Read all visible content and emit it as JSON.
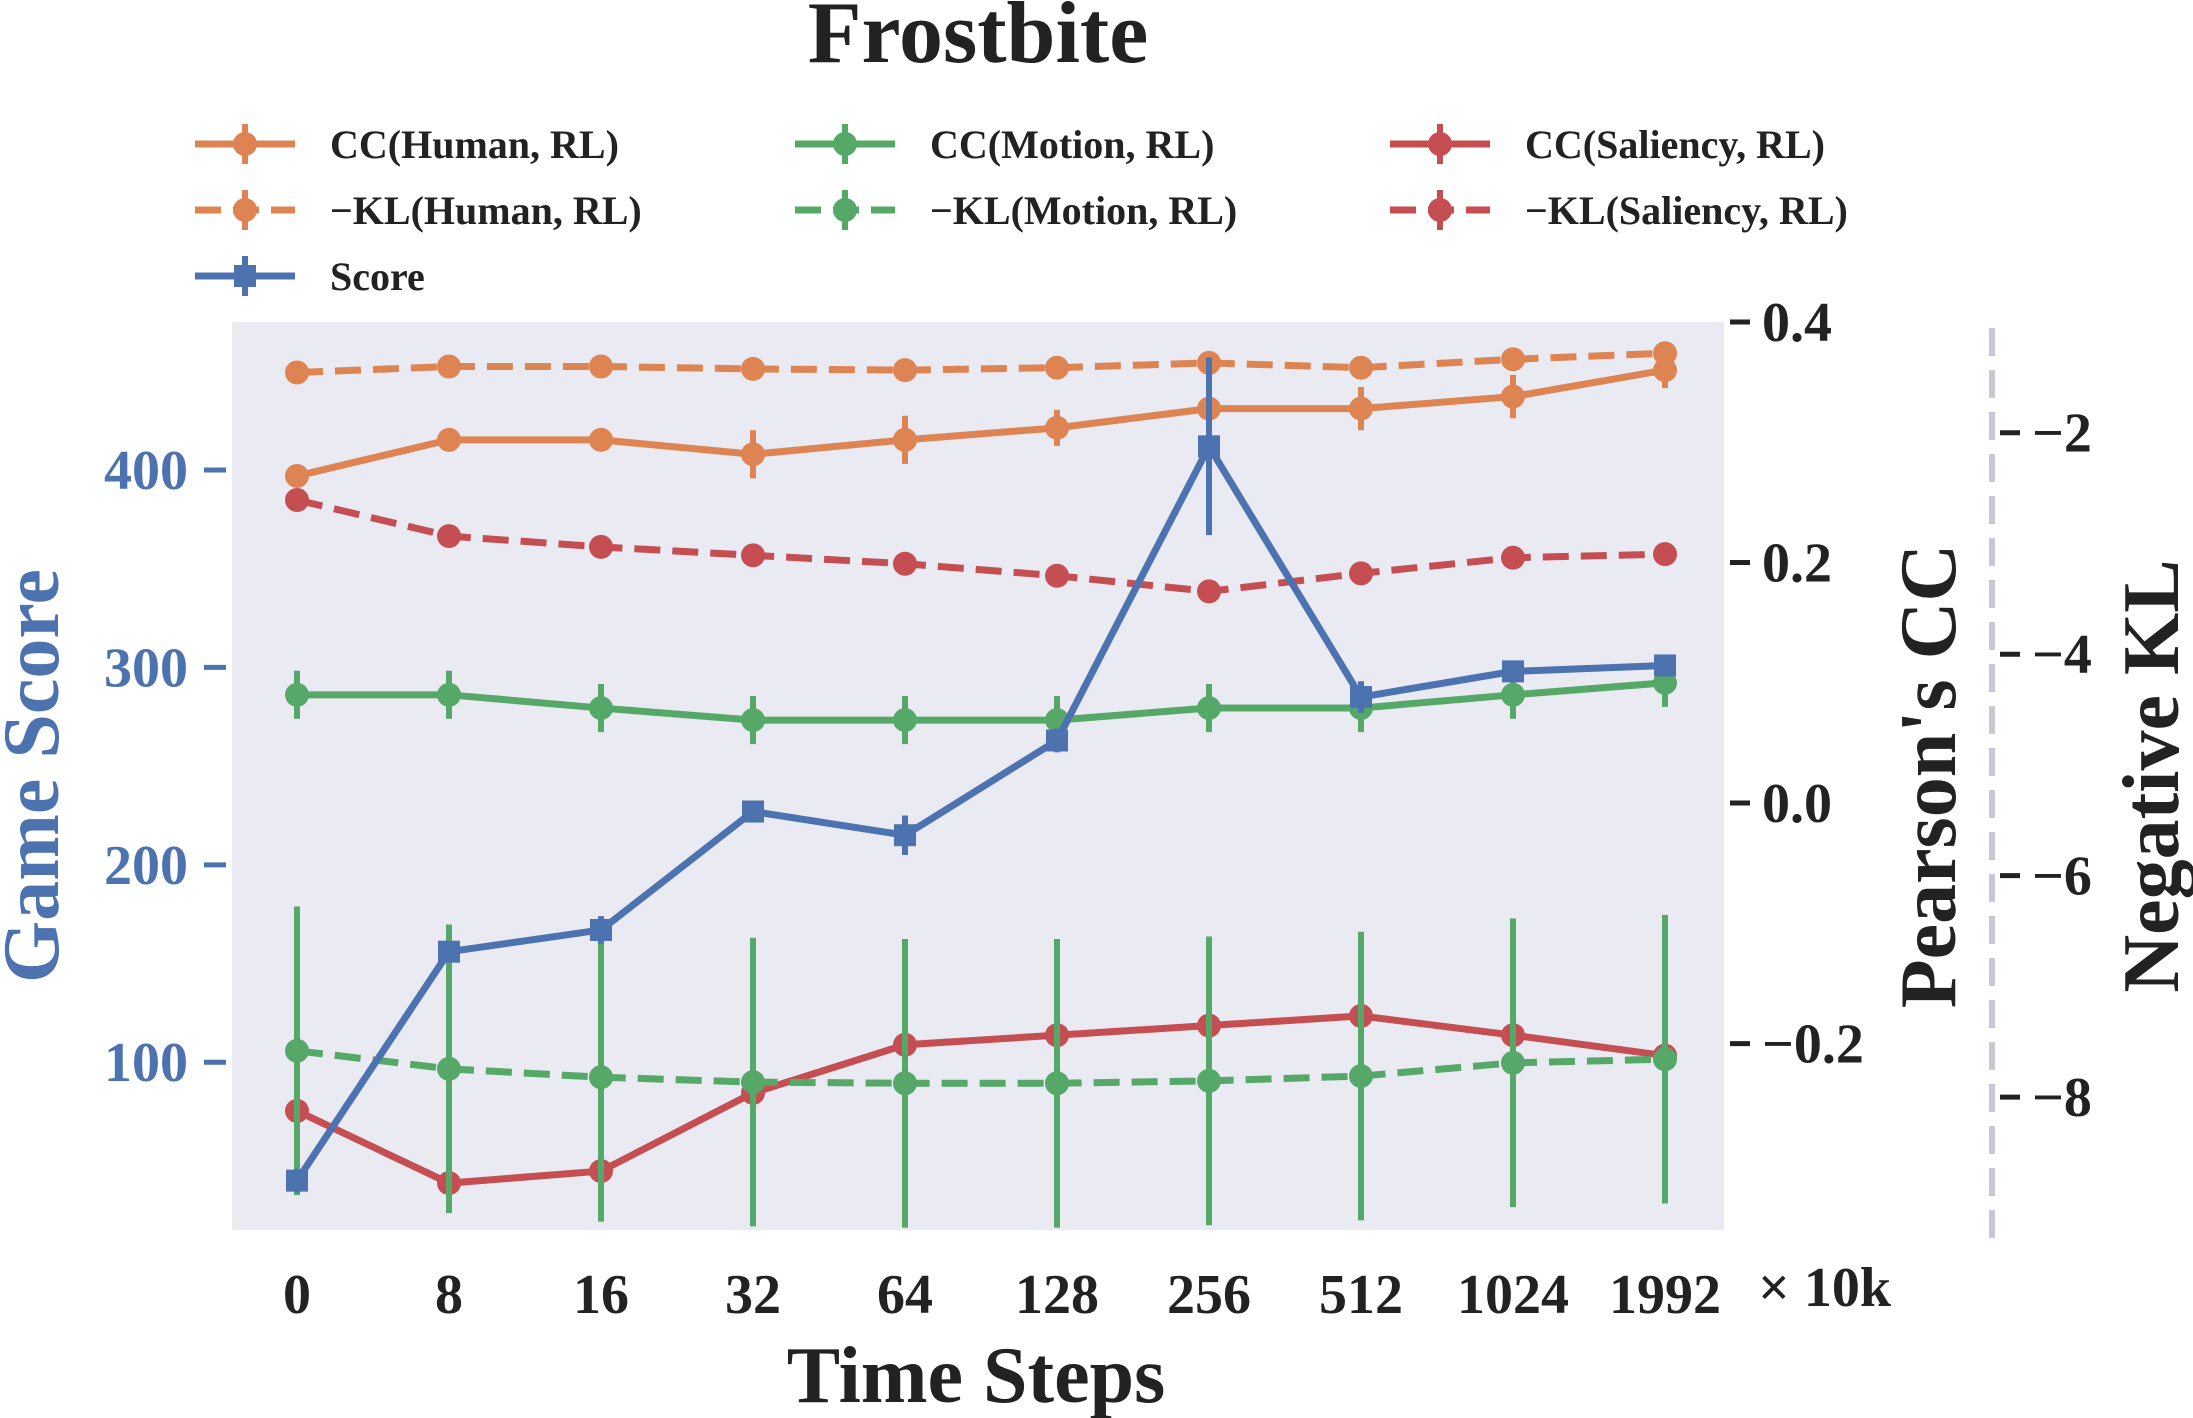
{
  "chart_data": {
    "type": "line",
    "title": "Frostbite",
    "xlabel": "Time Steps",
    "x_offset_label": "× 10k",
    "categories": [
      "0",
      "8",
      "16",
      "32",
      "64",
      "128",
      "256",
      "512",
      "1024",
      "1992"
    ],
    "axes": {
      "left": {
        "label": "Game Score",
        "ylim": [
          15,
          475
        ],
        "ticks": [
          100,
          200,
          300,
          400
        ],
        "tick_labels": [
          "100",
          "200",
          "300",
          "400"
        ],
        "color": "#4c72b0"
      },
      "right": {
        "label": "Pearson's CC",
        "ylim": [
          -0.355,
          0.4
        ],
        "ticks": [
          -0.2,
          0.0,
          0.2,
          0.4
        ],
        "tick_labels": [
          "−0.2",
          "0.0",
          "0.2",
          "0.4"
        ]
      },
      "far_right": {
        "label": "Negative KL",
        "ylim": [
          -9.2,
          -1.0
        ],
        "ticks": [
          -2,
          -4,
          -6,
          -8
        ],
        "tick_labels": [
          "−2",
          "−4",
          "−6",
          "−8"
        ]
      }
    },
    "series": [
      {
        "name": "CC(Human, RL)",
        "axis": "right",
        "color": "#dd8452",
        "style": "solid",
        "marker": "circle",
        "values": [
          0.272,
          0.302,
          0.302,
          0.29,
          0.302,
          0.312,
          0.328,
          0.328,
          0.338,
          0.36
        ],
        "errors": [
          0.0,
          0.0,
          0.0,
          0.02,
          0.02,
          0.015,
          0.015,
          0.018,
          0.018,
          0.015
        ]
      },
      {
        "name": "−KL(Human, RL)",
        "axis": "right",
        "color": "#dd8452",
        "style": "dashed",
        "marker": "circle",
        "values": [
          0.358,
          0.363,
          0.363,
          0.361,
          0.36,
          0.362,
          0.366,
          0.362,
          0.369,
          0.374
        ],
        "errors": [
          0.0,
          0.0,
          0.0,
          0.0,
          0.0,
          0.0,
          0.0,
          0.0,
          0.0,
          0.0
        ]
      },
      {
        "name": "CC(Motion, RL)",
        "axis": "right",
        "color": "#55a868",
        "style": "solid",
        "marker": "circle",
        "values": [
          0.09,
          0.09,
          0.079,
          0.069,
          0.069,
          0.069,
          0.079,
          0.079,
          0.09,
          0.1
        ],
        "errors": [
          0.02,
          0.02,
          0.02,
          0.02,
          0.02,
          0.02,
          0.02,
          0.02,
          0.02,
          0.02
        ]
      },
      {
        "name": "−KL(Motion, RL)",
        "axis": "right",
        "color": "#55a868",
        "style": "dashed",
        "marker": "circle",
        "values": [
          -0.206,
          -0.221,
          -0.228,
          -0.232,
          -0.233,
          -0.233,
          -0.231,
          -0.227,
          -0.216,
          -0.213
        ],
        "errors": [
          0.12,
          0.12,
          0.12,
          0.12,
          0.12,
          0.12,
          0.12,
          0.12,
          0.12,
          0.12
        ]
      },
      {
        "name": "CC(Saliency, RL)",
        "axis": "right",
        "color": "#c44e52",
        "style": "solid",
        "marker": "circle",
        "values": [
          -0.256,
          -0.316,
          -0.306,
          -0.241,
          -0.201,
          -0.193,
          -0.185,
          -0.177,
          -0.193,
          -0.21
        ],
        "errors": [
          0.0,
          0.0,
          0.0,
          0.0,
          0.0,
          0.0,
          0.0,
          0.0,
          0.0,
          0.0
        ]
      },
      {
        "name": "−KL(Saliency, RL)",
        "axis": "right",
        "color": "#c44e52",
        "style": "dashed",
        "marker": "circle",
        "values": [
          0.252,
          0.222,
          0.213,
          0.206,
          0.199,
          0.189,
          0.176,
          0.191,
          0.204,
          0.207
        ],
        "errors": [
          0.0,
          0.0,
          0.0,
          0.0,
          0.0,
          0.0,
          0.0,
          0.0,
          0.0,
          0.0
        ]
      },
      {
        "name": "Score",
        "axis": "left",
        "color": "#4c72b0",
        "style": "solid",
        "marker": "square",
        "values": [
          40,
          156,
          167,
          227,
          215,
          263,
          412,
          285,
          298,
          301
        ],
        "errors": [
          6,
          5,
          7,
          5,
          10,
          6,
          45,
          8,
          5,
          5
        ]
      }
    ],
    "legend": {
      "placement": "top",
      "columns": 3
    }
  }
}
